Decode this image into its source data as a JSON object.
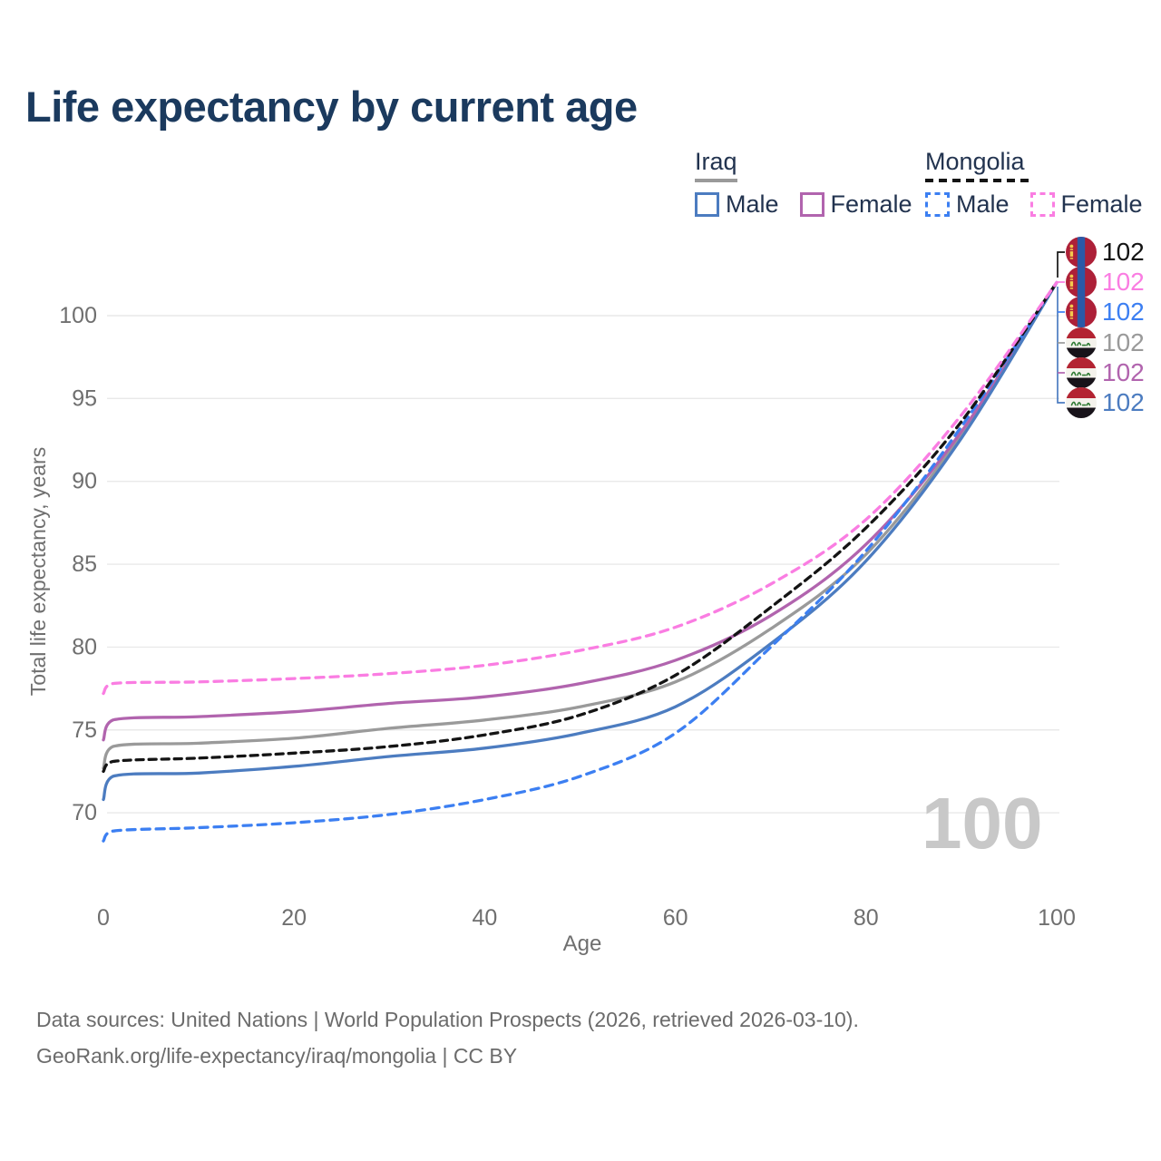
{
  "title": "Life expectancy by current age",
  "watermark": "100",
  "footer": {
    "line1": "Data sources: United Nations | World Population Prospects (2026, retrieved 2026-03-10).",
    "line2": "GeoRank.org/life-expectancy/iraq/mongolia | CC BY"
  },
  "legend": {
    "groups": [
      {
        "country": "Iraq",
        "line_style": "solid",
        "underline_color": "#9a9a9a",
        "items": [
          {
            "label": "Male",
            "color": "#4c7cc0",
            "dashed": false
          },
          {
            "label": "Female",
            "color": "#b164ae",
            "dashed": false
          }
        ]
      },
      {
        "country": "Mongolia",
        "line_style": "dashed",
        "underline_color": "#141414",
        "items": [
          {
            "label": "Male",
            "color": "#3c7ff2",
            "dashed": true
          },
          {
            "label": "Female",
            "color": "#fa7de2",
            "dashed": true
          }
        ]
      }
    ]
  },
  "chart_data": {
    "type": "line",
    "title": "Life expectancy by current age",
    "xlabel": "Age",
    "ylabel": "Total life expectancy, years",
    "xlim": [
      0,
      100
    ],
    "ylim": [
      67,
      103
    ],
    "xticks": [
      0,
      20,
      40,
      60,
      80,
      100
    ],
    "yticks": [
      70,
      75,
      80,
      85,
      90,
      95,
      100
    ],
    "grid": "horizontal",
    "legend_position": "top-right",
    "x": [
      0,
      1,
      10,
      20,
      30,
      40,
      50,
      60,
      70,
      80,
      90,
      100
    ],
    "series": [
      {
        "name": "Iraq",
        "sex": "Both sexes",
        "color": "#9a9a9a",
        "dashed": false,
        "values": [
          72.7,
          74.0,
          74.2,
          74.5,
          75.1,
          75.6,
          76.4,
          77.9,
          81.1,
          85.6,
          92.8,
          102
        ],
        "end_label": "102"
      },
      {
        "name": "Iraq Female",
        "sex": "Female",
        "color": "#b164ae",
        "dashed": false,
        "values": [
          74.4,
          75.6,
          75.8,
          76.1,
          76.6,
          77.0,
          77.8,
          79.2,
          81.9,
          86.2,
          93.0,
          102
        ],
        "end_label": "102"
      },
      {
        "name": "Iraq Male",
        "sex": "Male",
        "color": "#4c7cc0",
        "dashed": false,
        "values": [
          70.8,
          72.2,
          72.4,
          72.8,
          73.4,
          73.9,
          74.8,
          76.4,
          80.2,
          85.2,
          92.6,
          102
        ],
        "end_label": "102"
      },
      {
        "name": "Mongolia Male",
        "sex": "Male",
        "color": "#3c7ff2",
        "dashed": true,
        "values": [
          68.3,
          68.9,
          69.1,
          69.4,
          69.9,
          70.8,
          72.2,
          74.8,
          80.0,
          85.8,
          93.3,
          102
        ],
        "end_label": "102"
      },
      {
        "name": "Mongolia",
        "sex": "Both sexes",
        "color": "#141414",
        "dashed": true,
        "values": [
          72.5,
          73.1,
          73.3,
          73.6,
          74.0,
          74.7,
          75.9,
          78.3,
          82.4,
          87.2,
          93.6,
          102
        ],
        "end_label": "102"
      },
      {
        "name": "Mongolia Female",
        "sex": "Female",
        "color": "#fa7de2",
        "dashed": true,
        "values": [
          77.2,
          77.8,
          77.9,
          78.1,
          78.4,
          78.9,
          79.8,
          81.2,
          83.8,
          87.7,
          94.0,
          102
        ],
        "end_label": "102"
      }
    ],
    "end_labels": [
      {
        "series": "Mongolia",
        "flag": "mongolia",
        "value": "102",
        "color": "#141414"
      },
      {
        "series": "Mongolia Female",
        "flag": "mongolia",
        "value": "102",
        "color": "#fa7de2"
      },
      {
        "series": "Mongolia Male",
        "flag": "mongolia",
        "value": "102",
        "color": "#3c7ff2"
      },
      {
        "series": "Iraq",
        "flag": "iraq",
        "value": "102",
        "color": "#9a9a9a"
      },
      {
        "series": "Iraq Female",
        "flag": "iraq",
        "value": "102",
        "color": "#b164ae"
      },
      {
        "series": "Iraq Male",
        "flag": "iraq",
        "value": "102",
        "color": "#4c7cc0"
      }
    ]
  }
}
